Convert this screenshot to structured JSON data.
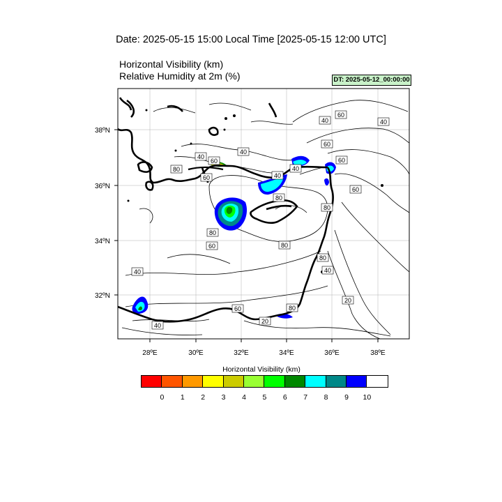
{
  "header": {
    "date_line": "Date: 2025-05-15  15:00 Local Time [2025-05-15  12:00 UTC]",
    "var_line_1": "Horizontal Visibility   (km)",
    "var_line_2": "Relative Humidity at 2m   (%)",
    "dt_stamp": "DT: 2025-05-12_00:00:00"
  },
  "map": {
    "lon_ticks": [
      "28ºE",
      "30ºE",
      "32ºE",
      "34ºE",
      "36ºE",
      "38ºE"
    ],
    "lat_ticks": [
      "38ºN",
      "36ºN",
      "34ºN",
      "32ºN"
    ],
    "contour_labels": [
      "60",
      "40",
      "40",
      "40",
      "60",
      "60",
      "40",
      "60",
      "80",
      "60",
      "40",
      "40",
      "60",
      "80",
      "80",
      "80",
      "60",
      "80",
      "40",
      "80",
      "40",
      "80",
      "20",
      "60",
      "40",
      "20"
    ]
  },
  "colorbar": {
    "title": "Horizontal Visibility  (km)",
    "colors": [
      "#ff0000",
      "#ff5500",
      "#ff9900",
      "#ffff00",
      "#cccc00",
      "#99ff33",
      "#00ff00",
      "#008800",
      "#00ffff",
      "#008888",
      "#0000ff",
      "#ffffff"
    ],
    "labels": [
      "0",
      "1",
      "2",
      "3",
      "4",
      "5",
      "6",
      "7",
      "8",
      "9",
      "10"
    ]
  }
}
